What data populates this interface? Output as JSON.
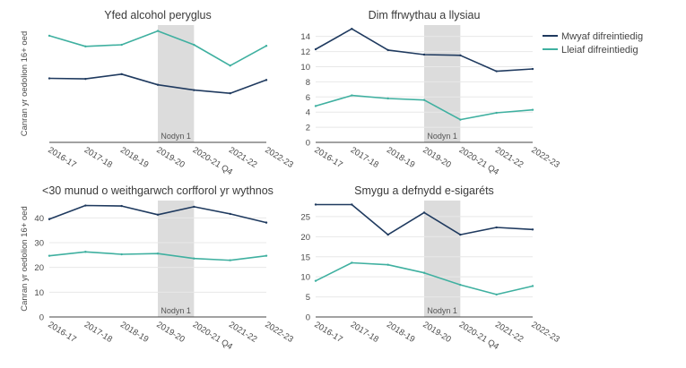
{
  "chart_data": {
    "legend": {
      "placement": "top-right",
      "entries": [
        {
          "name": "Mwyaf difreintiedig",
          "color": "#1f3a5f"
        },
        {
          "name": "Lleiaf difreintiedig",
          "color": "#3fb0a0"
        }
      ]
    },
    "ylabel": "Canran yr oedolion 16+ oed",
    "shaded_band": {
      "from": "2019-20",
      "to": "2020-21 Q4",
      "label": "Nodyn 1",
      "color": "#dcdcdc"
    },
    "panels": [
      {
        "type": "line",
        "title": "Yfed alcohol peryglus",
        "x": [
          "2016-17",
          "2017-18",
          "2018-19",
          "2019-20",
          "2020-21 Q4",
          "2021-22",
          "2022-23"
        ],
        "ylim": [
          0,
          22
        ],
        "yticks": [],
        "series": [
          {
            "name": "Mwyaf difreintiedig",
            "values": [
              12.0,
              11.9,
              12.8,
              10.8,
              9.8,
              9.2,
              11.7
            ]
          },
          {
            "name": "Lleiaf difreintiedig",
            "values": [
              20.0,
              18.0,
              18.3,
              20.9,
              18.3,
              14.4,
              18.1
            ]
          }
        ]
      },
      {
        "type": "line",
        "title": "Dim ffrwythau a llysiau",
        "x": [
          "2016-17",
          "2017-18",
          "2018-19",
          "2019-20",
          "2020-21 Q4",
          "2021-22",
          "2022-23"
        ],
        "ylim": [
          0,
          15.5
        ],
        "yticks": [
          0,
          2,
          4,
          6,
          8,
          10,
          12,
          14
        ],
        "series": [
          {
            "name": "Mwyaf difreintiedig",
            "values": [
              12.3,
              15.0,
              12.2,
              11.6,
              11.5,
              9.4,
              9.7
            ]
          },
          {
            "name": "Lleiaf difreintiedig",
            "values": [
              4.8,
              6.2,
              5.8,
              5.6,
              3.0,
              3.9,
              4.3
            ]
          }
        ]
      },
      {
        "type": "line",
        "title": "<30 munud o weithgarwch corfforol yr wythnos",
        "x": [
          "2016-17",
          "2017-18",
          "2018-19",
          "2019-20",
          "2020-21 Q4",
          "2021-22",
          "2022-23"
        ],
        "ylim": [
          0,
          47
        ],
        "yticks": [
          0,
          10,
          20,
          30,
          40
        ],
        "series": [
          {
            "name": "Mwyaf difreintiedig",
            "values": [
              39.5,
              45.0,
              44.8,
              41.3,
              44.5,
              41.6,
              38.1
            ]
          },
          {
            "name": "Lleiaf difreintiedig",
            "values": [
              24.7,
              26.3,
              25.3,
              25.6,
              23.6,
              22.9,
              24.7
            ]
          }
        ]
      },
      {
        "type": "line",
        "title": "Smygu a defnydd e-sigaréts",
        "x": [
          "2016-17",
          "2017-18",
          "2018-19",
          "2019-20",
          "2020-21 Q4",
          "2021-22",
          "2022-23"
        ],
        "ylim": [
          0,
          29
        ],
        "yticks": [
          0,
          5,
          10,
          15,
          20,
          25
        ],
        "series": [
          {
            "name": "Mwyaf difreintiedig",
            "values": [
              28.0,
              28.0,
              20.5,
              26.0,
              20.5,
              22.3,
              21.8
            ]
          },
          {
            "name": "Lleiaf difreintiedig",
            "values": [
              9.0,
              13.5,
              13.0,
              11.0,
              8.0,
              5.6,
              7.7
            ]
          }
        ]
      }
    ]
  }
}
